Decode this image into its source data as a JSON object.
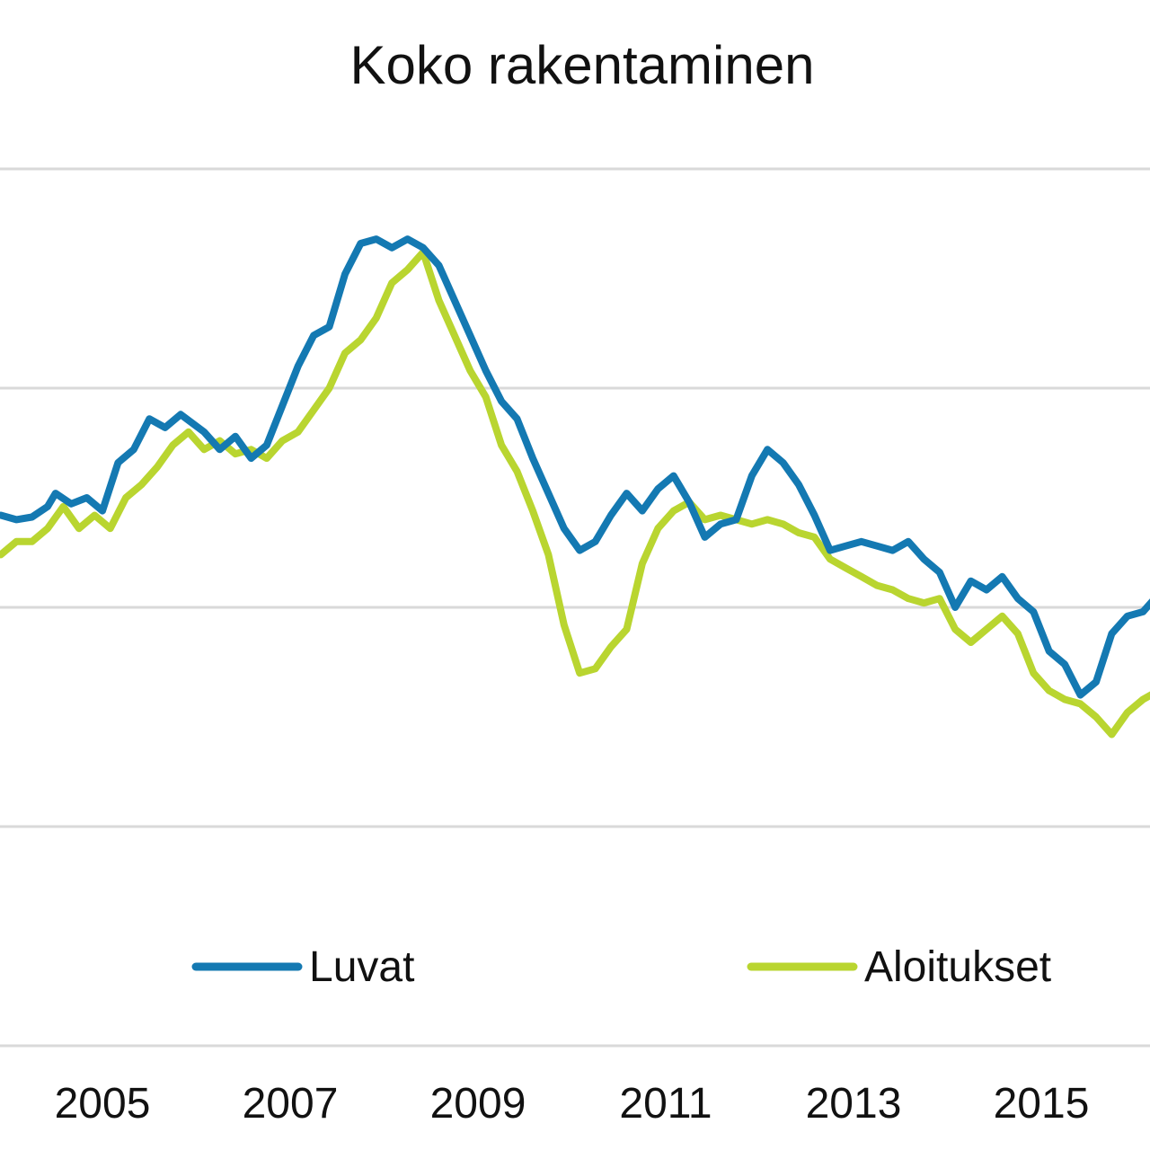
{
  "chart_data": {
    "type": "line",
    "title": "Koko rakentaminen",
    "x_ticks": [
      "2005",
      "2007",
      "2009",
      "2011",
      "2013",
      "2015"
    ],
    "xlim": [
      "2003-12",
      "2016-05"
    ],
    "y_gridlines": 5,
    "grid": true,
    "legend_position": "bottom",
    "colors": {
      "luvat": "#1479b2",
      "aloitukset": "#b9d530",
      "grid": "#d9d9d9"
    },
    "series": [
      {
        "name": "Luvat",
        "points": [
          [
            "2003-12",
            50.5
          ],
          [
            "2004-02",
            50.0
          ],
          [
            "2004-04",
            50.3
          ],
          [
            "2004-06",
            51.5
          ],
          [
            "2004-07",
            53.0
          ],
          [
            "2004-09",
            51.8
          ],
          [
            "2004-11",
            52.5
          ],
          [
            "2005-01",
            51.0
          ],
          [
            "2005-03",
            56.5
          ],
          [
            "2005-05",
            58.0
          ],
          [
            "2005-07",
            61.5
          ],
          [
            "2005-09",
            60.5
          ],
          [
            "2005-11",
            62.0
          ],
          [
            "2006-02",
            60.0
          ],
          [
            "2006-04",
            58.0
          ],
          [
            "2006-06",
            59.5
          ],
          [
            "2006-08",
            57.0
          ],
          [
            "2006-10",
            58.5
          ],
          [
            "2006-12",
            63.0
          ],
          [
            "2007-02",
            67.5
          ],
          [
            "2007-04",
            71.0
          ],
          [
            "2007-06",
            72.0
          ],
          [
            "2007-08",
            78.0
          ],
          [
            "2007-10",
            81.5
          ],
          [
            "2007-12",
            82.0
          ],
          [
            "2008-02",
            81.0
          ],
          [
            "2008-04",
            82.0
          ],
          [
            "2008-06",
            81.0
          ],
          [
            "2008-08",
            79.0
          ],
          [
            "2008-10",
            75.0
          ],
          [
            "2008-12",
            71.0
          ],
          [
            "2009-02",
            67.0
          ],
          [
            "2009-04",
            63.5
          ],
          [
            "2009-06",
            61.5
          ],
          [
            "2009-08",
            57.0
          ],
          [
            "2009-10",
            53.0
          ],
          [
            "2009-12",
            49.0
          ],
          [
            "2010-02",
            46.5
          ],
          [
            "2010-04",
            47.5
          ],
          [
            "2010-06",
            50.5
          ],
          [
            "2010-08",
            53.0
          ],
          [
            "2010-10",
            51.0
          ],
          [
            "2010-12",
            53.5
          ],
          [
            "2011-02",
            55.0
          ],
          [
            "2011-04",
            52.0
          ],
          [
            "2011-06",
            48.0
          ],
          [
            "2011-08",
            49.5
          ],
          [
            "2011-10",
            50.0
          ],
          [
            "2011-12",
            55.0
          ],
          [
            "2012-02",
            58.0
          ],
          [
            "2012-04",
            56.5
          ],
          [
            "2012-06",
            54.0
          ],
          [
            "2012-08",
            50.5
          ],
          [
            "2012-10",
            46.5
          ],
          [
            "2012-12",
            47.0
          ],
          [
            "2013-02",
            47.5
          ],
          [
            "2013-04",
            47.0
          ],
          [
            "2013-06",
            46.5
          ],
          [
            "2013-08",
            47.5
          ],
          [
            "2013-10",
            45.5
          ],
          [
            "2013-12",
            44.0
          ],
          [
            "2014-02",
            40.0
          ],
          [
            "2014-04",
            43.0
          ],
          [
            "2014-06",
            42.0
          ],
          [
            "2014-08",
            43.5
          ],
          [
            "2014-10",
            41.0
          ],
          [
            "2014-12",
            39.5
          ],
          [
            "2015-02",
            35.0
          ],
          [
            "2015-04",
            33.5
          ],
          [
            "2015-06",
            30.0
          ],
          [
            "2015-08",
            31.5
          ],
          [
            "2015-10",
            37.0
          ],
          [
            "2015-12",
            39.0
          ],
          [
            "2016-02",
            39.5
          ],
          [
            "2016-04",
            41.5
          ],
          [
            "2016-05",
            40.0
          ]
        ]
      },
      {
        "name": "Aloitukset",
        "points": [
          [
            "2003-12",
            46.0
          ],
          [
            "2004-02",
            47.5
          ],
          [
            "2004-04",
            47.5
          ],
          [
            "2004-06",
            49.0
          ],
          [
            "2004-08",
            51.5
          ],
          [
            "2004-10",
            49.0
          ],
          [
            "2004-12",
            50.5
          ],
          [
            "2005-02",
            49.0
          ],
          [
            "2005-04",
            52.5
          ],
          [
            "2005-06",
            54.0
          ],
          [
            "2005-08",
            56.0
          ],
          [
            "2005-10",
            58.5
          ],
          [
            "2005-12",
            60.0
          ],
          [
            "2006-02",
            58.0
          ],
          [
            "2006-04",
            59.0
          ],
          [
            "2006-06",
            57.5
          ],
          [
            "2006-08",
            58.0
          ],
          [
            "2006-10",
            57.0
          ],
          [
            "2006-12",
            59.0
          ],
          [
            "2007-02",
            60.0
          ],
          [
            "2007-04",
            62.5
          ],
          [
            "2007-06",
            65.0
          ],
          [
            "2007-08",
            69.0
          ],
          [
            "2007-10",
            70.5
          ],
          [
            "2007-12",
            73.0
          ],
          [
            "2008-02",
            77.0
          ],
          [
            "2008-04",
            78.5
          ],
          [
            "2008-06",
            80.5
          ],
          [
            "2008-08",
            75.0
          ],
          [
            "2008-10",
            71.0
          ],
          [
            "2008-12",
            67.0
          ],
          [
            "2009-02",
            64.0
          ],
          [
            "2009-04",
            58.5
          ],
          [
            "2009-06",
            55.5
          ],
          [
            "2009-08",
            51.0
          ],
          [
            "2009-10",
            46.0
          ],
          [
            "2009-12",
            38.0
          ],
          [
            "2010-02",
            32.5
          ],
          [
            "2010-04",
            33.0
          ],
          [
            "2010-06",
            35.5
          ],
          [
            "2010-08",
            37.5
          ],
          [
            "2010-10",
            45.0
          ],
          [
            "2010-12",
            49.0
          ],
          [
            "2011-02",
            51.0
          ],
          [
            "2011-04",
            52.0
          ],
          [
            "2011-06",
            50.0
          ],
          [
            "2011-08",
            50.5
          ],
          [
            "2011-10",
            50.0
          ],
          [
            "2011-12",
            49.5
          ],
          [
            "2012-02",
            50.0
          ],
          [
            "2012-04",
            49.5
          ],
          [
            "2012-06",
            48.5
          ],
          [
            "2012-08",
            48.0
          ],
          [
            "2012-10",
            45.5
          ],
          [
            "2012-12",
            44.5
          ],
          [
            "2013-02",
            43.5
          ],
          [
            "2013-04",
            42.5
          ],
          [
            "2013-06",
            42.0
          ],
          [
            "2013-08",
            41.0
          ],
          [
            "2013-10",
            40.5
          ],
          [
            "2013-12",
            41.0
          ],
          [
            "2014-02",
            37.5
          ],
          [
            "2014-04",
            36.0
          ],
          [
            "2014-06",
            37.5
          ],
          [
            "2014-08",
            39.0
          ],
          [
            "2014-10",
            37.0
          ],
          [
            "2014-12",
            32.5
          ],
          [
            "2015-02",
            30.5
          ],
          [
            "2015-04",
            29.5
          ],
          [
            "2015-06",
            29.0
          ],
          [
            "2015-08",
            27.5
          ],
          [
            "2015-10",
            25.5
          ],
          [
            "2015-12",
            28.0
          ],
          [
            "2016-02",
            29.5
          ],
          [
            "2016-04",
            30.5
          ],
          [
            "2016-05",
            31.0
          ]
        ]
      }
    ]
  }
}
